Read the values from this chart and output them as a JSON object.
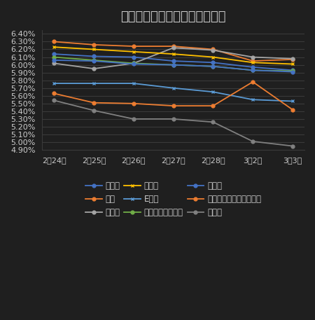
{
  "title": "互联网理财产品年化收益率趋势",
  "x_labels": [
    "2月24日",
    "2月25日",
    "2月26日",
    "2月27日",
    "2月28日",
    "3月2日",
    "3月3日"
  ],
  "series": [
    {
      "name": "余额宝",
      "color": "#4472C4",
      "marker": "o",
      "linestyle": "-",
      "values": [
        6.14,
        6.11,
        6.1,
        6.05,
        6.03,
        5.97,
        5.93
      ]
    },
    {
      "name": "百赚",
      "color": "#ED7D31",
      "marker": "o",
      "linestyle": "-",
      "values": [
        6.3,
        6.26,
        6.24,
        6.24,
        6.2,
        6.05,
        6.07
      ]
    },
    {
      "name": "零钱宝",
      "color": "#A5A5A5",
      "marker": "o",
      "linestyle": "-",
      "values": [
        6.02,
        5.95,
        6.02,
        6.22,
        6.19,
        6.1,
        6.08
      ]
    },
    {
      "name": "理财通",
      "color": "#FFC000",
      "marker": "x",
      "linestyle": "-",
      "values": [
        6.23,
        6.2,
        6.17,
        6.14,
        6.1,
        6.03,
        6.01
      ]
    },
    {
      "name": "E钱包",
      "color": "#5B9BD5",
      "marker": "x",
      "linestyle": "-",
      "values": [
        5.76,
        5.76,
        5.76,
        5.7,
        5.65,
        5.55,
        5.53
      ]
    },
    {
      "name": "现金宝（汇添富）",
      "color": "#70AD47",
      "marker": "o",
      "linestyle": "-",
      "values": [
        6.1,
        6.06,
        6.02,
        6.0,
        5.98,
        5.93,
        5.92
      ]
    },
    {
      "name": "活期通",
      "color": "#4472C4",
      "marker": "o",
      "linestyle": "-",
      "values": [
        6.06,
        6.05,
        6.01,
        6.0,
        5.98,
        5.93,
        5.91
      ]
    },
    {
      "name": "现金宝（南方现金增利）",
      "color": "#ED7D31",
      "marker": "o",
      "linestyle": "-",
      "values": [
        5.63,
        5.51,
        5.5,
        5.47,
        5.47,
        5.78,
        5.42
      ]
    },
    {
      "name": "钱袋子",
      "color": "#808080",
      "marker": "o",
      "linestyle": "-",
      "values": [
        5.54,
        5.41,
        5.3,
        5.3,
        5.26,
        5.01,
        4.95
      ]
    }
  ],
  "ylim": [
    4.9,
    6.45
  ],
  "ytick_step": 0.1,
  "bg_color": "#1F1F1F",
  "plot_bg_color": "#1F1F1F",
  "grid_color": "#3A3A3A",
  "text_color": "#CCCCCC",
  "title_fontsize": 13,
  "tick_fontsize": 8,
  "legend_fontsize": 8.5
}
